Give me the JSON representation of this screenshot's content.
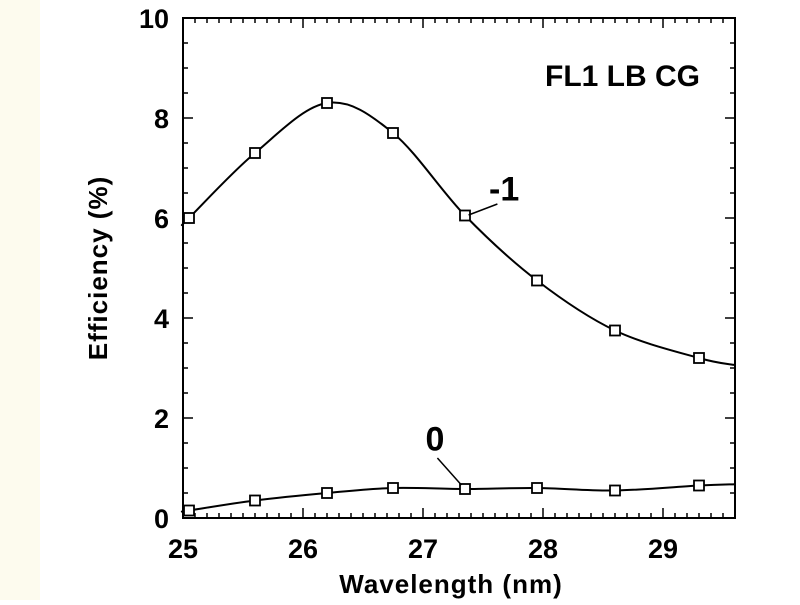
{
  "colors": {
    "line": "#000000",
    "background": "#ffffff",
    "left_margin": "#fdfbee"
  },
  "chart_data": {
    "type": "line",
    "title": "FL1 LB CG",
    "xlabel": "Wavelength (nm)",
    "ylabel": "Efficiency (%)",
    "xlim": [
      25,
      29.6
    ],
    "ylim": [
      0,
      10
    ],
    "xticks": [
      "25",
      "26",
      "27",
      "28",
      "29"
    ],
    "yticks": [
      "0",
      "2",
      "4",
      "6",
      "8",
      "10"
    ],
    "grid": false,
    "marker": "open-square",
    "series": [
      {
        "name": "-1",
        "x": [
          25.05,
          25.6,
          26.2,
          26.75,
          27.35,
          27.95,
          28.6,
          29.3
        ],
        "y": [
          6.0,
          7.3,
          8.3,
          7.7,
          6.05,
          4.75,
          3.75,
          3.2
        ]
      },
      {
        "name": "0",
        "x": [
          25.05,
          25.6,
          26.2,
          26.75,
          27.35,
          27.95,
          28.6,
          29.3
        ],
        "y": [
          0.15,
          0.35,
          0.5,
          0.6,
          0.58,
          0.6,
          0.55,
          0.65
        ]
      }
    ]
  }
}
